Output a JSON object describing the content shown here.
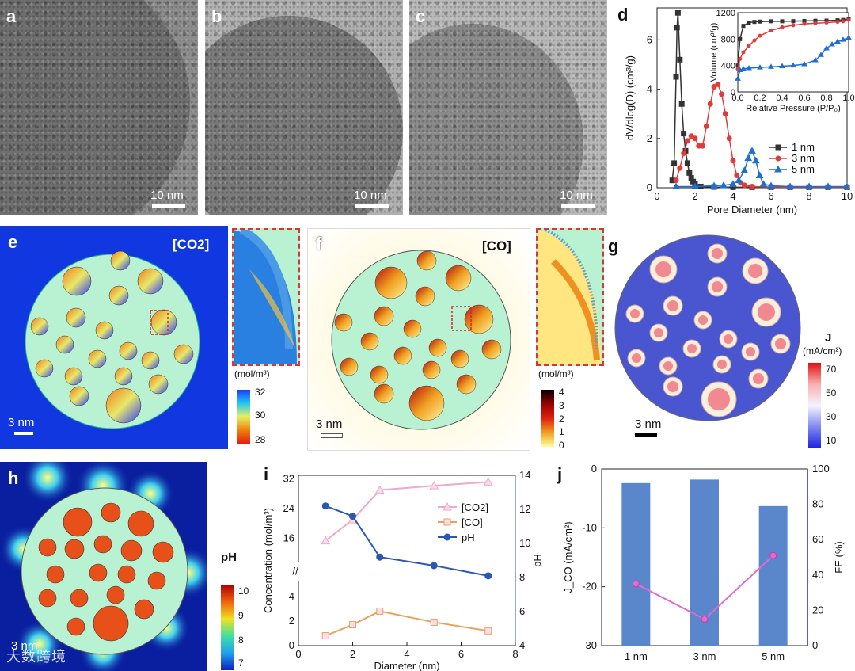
{
  "panels": {
    "a": "a",
    "b": "b",
    "c": "c",
    "d": "d",
    "e": "e",
    "f": "f",
    "g": "g",
    "h": "h",
    "i": "i",
    "j": "j"
  },
  "tem": {
    "scale": "10 nm"
  },
  "sim": {
    "scale": "3 nm",
    "e_species": "[CO2]",
    "f_species": "[CO]",
    "unit_mol": "(mol/m³)",
    "e_ticks": [
      "32",
      "30",
      "28"
    ],
    "f_ticks": [
      "4",
      "3",
      "2",
      "1",
      "0"
    ],
    "g_title": "J",
    "g_unit": "(mA/cm²)",
    "g_ticks": [
      "70",
      "50",
      "30",
      "10"
    ],
    "h_title": "pH",
    "h_ticks": [
      "10",
      "9",
      "8",
      "7"
    ],
    "h_scale": "3 nm",
    "watermark": "大数跨境"
  },
  "chart_data": [
    {
      "id": "d",
      "type": "line",
      "xlabel": "Pore Diameter (nm)",
      "ylabel": "dV/dlog(D) (cm³/g)",
      "xlim": [
        0,
        10
      ],
      "ylim": [
        0,
        7.3
      ],
      "xticks": [
        "0",
        "2",
        "4",
        "6",
        "8",
        "10"
      ],
      "yticks": [
        "0",
        "2",
        "4",
        "6"
      ],
      "series": [
        {
          "name": "1 nm",
          "color": "#333333",
          "marker": "square",
          "x": [
            0.8,
            0.9,
            1.0,
            1.05,
            1.1,
            1.2,
            1.3,
            1.4,
            1.5,
            1.6,
            1.7,
            1.8,
            1.9,
            2.0,
            2.3,
            3,
            4,
            5,
            6,
            7,
            8,
            9,
            10
          ],
          "y": [
            0.3,
            1.0,
            4.5,
            6.5,
            7.1,
            5.2,
            3.4,
            2.2,
            1.5,
            1.0,
            0.6,
            0.4,
            0.25,
            0.15,
            0.05,
            0.03,
            0.02,
            0.02,
            0.02,
            0.02,
            0.02,
            0.02,
            0.02
          ]
        },
        {
          "name": "3 nm",
          "color": "#e03c3c",
          "marker": "circle",
          "x": [
            1.0,
            1.2,
            1.4,
            1.6,
            1.8,
            2.0,
            2.2,
            2.4,
            2.6,
            2.8,
            3.0,
            3.2,
            3.4,
            3.6,
            3.8,
            4.0,
            4.2,
            4.4,
            4.6,
            5,
            6,
            7,
            8,
            9,
            10
          ],
          "y": [
            0.3,
            0.8,
            1.4,
            1.9,
            2.1,
            2.0,
            1.7,
            1.7,
            2.5,
            3.4,
            4.1,
            4.2,
            3.8,
            3.0,
            2.0,
            1.1,
            0.5,
            0.2,
            0.1,
            0.05,
            0.03,
            0.03,
            0.03,
            0.03,
            0.03
          ]
        },
        {
          "name": "5 nm",
          "color": "#1f6fd1",
          "marker": "triangle",
          "x": [
            1.0,
            2.0,
            3.0,
            3.5,
            4.0,
            4.3,
            4.6,
            4.8,
            5.0,
            5.2,
            5.4,
            5.6,
            6.0,
            7,
            8,
            9,
            10
          ],
          "y": [
            0.05,
            0.05,
            0.08,
            0.1,
            0.15,
            0.3,
            0.7,
            1.2,
            1.5,
            1.1,
            0.5,
            0.15,
            0.08,
            0.05,
            0.05,
            0.05,
            0.05
          ]
        }
      ],
      "inset": {
        "xlabel": "Relative Pressure (P/P₀)",
        "ylabel": "Volume (cm³/g)",
        "xlim": [
          0,
          1
        ],
        "ylim": [
          0,
          1200
        ],
        "xticks": [
          "0.0",
          "0.2",
          "0.4",
          "0.6",
          "0.8",
          "1.0"
        ],
        "yticks": [
          "0",
          "400",
          "800",
          "1200"
        ],
        "series": [
          {
            "name": "1 nm",
            "color": "#333333",
            "x": [
              0.0,
              0.02,
              0.05,
              0.1,
              0.15,
              0.2,
              0.3,
              0.4,
              0.5,
              0.6,
              0.7,
              0.8,
              0.9,
              0.95,
              1.0
            ],
            "y": [
              400,
              800,
              1000,
              1050,
              1060,
              1065,
              1070,
              1070,
              1072,
              1075,
              1078,
              1080,
              1085,
              1090,
              1100
            ]
          },
          {
            "name": "3 nm",
            "color": "#e03c3c",
            "x": [
              0.0,
              0.02,
              0.05,
              0.1,
              0.15,
              0.2,
              0.3,
              0.4,
              0.5,
              0.6,
              0.7,
              0.8,
              0.9,
              0.95,
              1.0
            ],
            "y": [
              350,
              500,
              600,
              700,
              780,
              850,
              930,
              980,
              1010,
              1030,
              1040,
              1050,
              1060,
              1070,
              1090
            ]
          },
          {
            "name": "5 nm",
            "color": "#1f6fd1",
            "x": [
              0.0,
              0.02,
              0.05,
              0.1,
              0.2,
              0.3,
              0.4,
              0.5,
              0.6,
              0.7,
              0.75,
              0.8,
              0.85,
              0.9,
              0.95,
              1.0
            ],
            "y": [
              200,
              330,
              350,
              360,
              370,
              380,
              390,
              400,
              420,
              480,
              560,
              660,
              720,
              760,
              790,
              820
            ]
          }
        ]
      }
    },
    {
      "id": "i",
      "type": "line",
      "xlabel": "Diameter (nm)",
      "ylabel": "Concentration (mol/m³)",
      "y2label": "pH",
      "xlim": [
        0,
        8
      ],
      "xticks": [
        "0",
        "2",
        "4",
        "6",
        "8"
      ],
      "upper_ylim": [
        12,
        33
      ],
      "upper_yticks": [
        "16",
        "24",
        "32"
      ],
      "lower_ylim": [
        0,
        4.5
      ],
      "lower_yticks": [
        "0",
        "2",
        "4"
      ],
      "y2lim": [
        4,
        14
      ],
      "y2ticks": [
        "4",
        "6",
        "8",
        "10",
        "12",
        "14"
      ],
      "series": [
        {
          "name": "[CO2]",
          "color": "#f0a7c9",
          "marker": "triangle",
          "axis": "upper",
          "x": [
            1,
            2,
            3,
            5,
            7
          ],
          "y": [
            15.3,
            21,
            29,
            30.2,
            31.2
          ]
        },
        {
          "name": "[CO]",
          "color": "#e8a35a",
          "marker": "square",
          "axis": "lower",
          "x": [
            1,
            2,
            3,
            5,
            7
          ],
          "y": [
            0.8,
            1.7,
            2.8,
            1.9,
            1.2
          ]
        },
        {
          "name": "pH",
          "color": "#2a56b5",
          "marker": "circle",
          "axis": "y2",
          "x": [
            1,
            2,
            3,
            5,
            7
          ],
          "y": [
            12.2,
            11.6,
            9.2,
            8.7,
            8.1
          ]
        }
      ]
    },
    {
      "id": "j",
      "type": "bar",
      "categories": [
        "1 nm",
        "3 nm",
        "5 nm"
      ],
      "ylabel": "J_CO (mA/cm²)",
      "y2label": "FE (%)",
      "ylim": [
        -30,
        0
      ],
      "yticks": [
        "0",
        "-10",
        "-20",
        "-30"
      ],
      "y2lim": [
        0,
        100
      ],
      "y2ticks": [
        "0",
        "20",
        "40",
        "60",
        "80",
        "100"
      ],
      "series": [
        {
          "name": "FE",
          "color": "#5a86cc",
          "axis": "y2",
          "values": [
            92,
            94,
            79
          ]
        },
        {
          "name": "J_CO",
          "color": "#e06ccf",
          "axis": "y",
          "values": [
            -19.5,
            -25.5,
            -14.7
          ]
        }
      ]
    }
  ]
}
